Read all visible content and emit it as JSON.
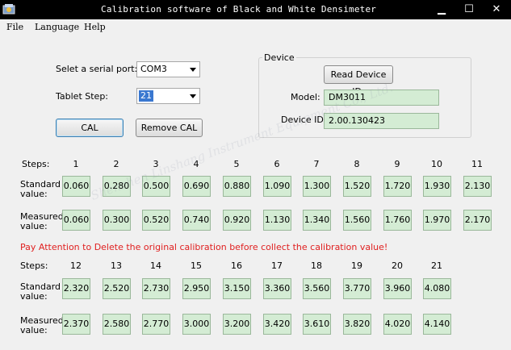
{
  "window": {
    "title": "Calibration software of Black and White Densimeter",
    "min_glyph": "▁",
    "max_glyph": "☐",
    "close_glyph": "✕"
  },
  "menu": [
    "File",
    "Language",
    "Help"
  ],
  "controls": {
    "serial_label": "Selet a serial port:",
    "serial_value": "COM3",
    "tablet_label": "Tablet Step:",
    "tablet_value": "21",
    "cal_button": "CAL",
    "remove_button": "Remove CAL"
  },
  "device": {
    "group_title": "Device",
    "read_button": "Read Device ID:",
    "model_label": "Model:",
    "model_value": "DM3011",
    "id_label": "Device ID:",
    "id_value": "2.00.130423"
  },
  "table1": {
    "steps_label": "Steps:",
    "standard_label_1": "Standard",
    "standard_label_2": "value:",
    "measured_label_1": "Measured",
    "measured_label_2": "value:",
    "steps": [
      "1",
      "2",
      "3",
      "4",
      "5",
      "6",
      "7",
      "8",
      "9",
      "10",
      "11"
    ],
    "standard": [
      "0.060",
      "0.280",
      "0.500",
      "0.690",
      "0.880",
      "1.090",
      "1.300",
      "1.520",
      "1.720",
      "1.930",
      "2.130"
    ],
    "measured": [
      "0.060",
      "0.300",
      "0.520",
      "0.740",
      "0.920",
      "1.130",
      "1.340",
      "1.560",
      "1.760",
      "1.970",
      "2.170"
    ]
  },
  "warning": "Pay Attention to Delete the original calibration before collect the calibration value!",
  "table2": {
    "steps_label": "Steps:",
    "standard_label_1": "Standard",
    "standard_label_2": "value:",
    "measured_label_1": "Measured",
    "measured_label_2": "value:",
    "steps": [
      "12",
      "13",
      "14",
      "15",
      "16",
      "17",
      "18",
      "19",
      "20",
      "21"
    ],
    "standard": [
      "2.320",
      "2.520",
      "2.730",
      "2.950",
      "3.150",
      "3.360",
      "3.560",
      "3.770",
      "3.960",
      "4.080"
    ],
    "measured": [
      "2.370",
      "2.580",
      "2.770",
      "3.000",
      "3.200",
      "3.420",
      "3.610",
      "3.820",
      "4.020",
      "4.140"
    ]
  },
  "watermark": "Shenzhen Linshang Instrument Equipment Co., Ltd."
}
